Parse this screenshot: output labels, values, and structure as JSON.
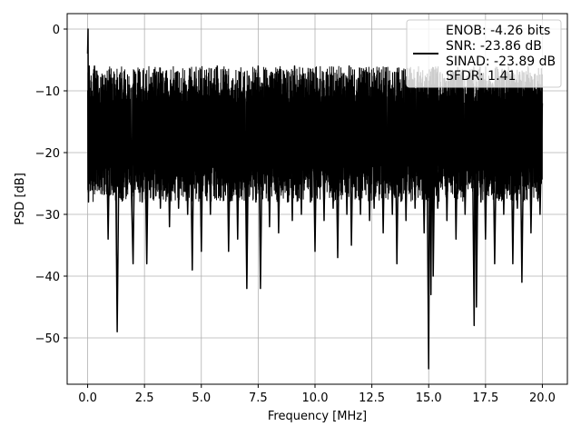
{
  "chart_data": {
    "type": "line",
    "title": "",
    "xlabel": "Frequency [MHz]",
    "ylabel": "PSD [dB]",
    "xlim": [
      -0.9,
      21.1
    ],
    "ylim": [
      -57.5,
      2.5
    ],
    "xticks": [
      0.0,
      2.5,
      5.0,
      7.5,
      10.0,
      12.5,
      15.0,
      17.5,
      20.0
    ],
    "xtick_labels": [
      "0.0",
      "2.5",
      "5.0",
      "7.5",
      "10.0",
      "12.5",
      "15.0",
      "17.5",
      "20.0"
    ],
    "yticks": [
      0,
      -10,
      -20,
      -30,
      -40,
      -50
    ],
    "ytick_labels": [
      "0",
      "−10",
      "−20",
      "−30",
      "−40",
      "−50"
    ],
    "grid": true,
    "legend": {
      "placement": "top-right",
      "entries": [
        "ENOB: -4.26 bits",
        "SNR: -23.86 dB",
        "SINAD: -23.89 dB",
        "SFDR: 1.41"
      ]
    },
    "series": [
      {
        "color": "#000000",
        "x_range": [
          0.0,
          20.0
        ],
        "points": [
          [
            0.0,
            -4
          ],
          [
            0.02,
            0
          ],
          [
            0.04,
            -28
          ],
          [
            0.07,
            -6
          ],
          [
            0.1,
            -25
          ],
          [
            0.15,
            -10
          ],
          [
            0.2,
            -26
          ],
          [
            0.3,
            -6
          ],
          [
            0.35,
            -22
          ],
          [
            0.45,
            -9
          ],
          [
            0.5,
            -26
          ],
          [
            0.6,
            -12
          ],
          [
            0.7,
            -24
          ],
          [
            0.8,
            -8
          ],
          [
            0.9,
            -34
          ],
          [
            1.0,
            -10
          ],
          [
            1.1,
            -26
          ],
          [
            1.2,
            -9
          ],
          [
            1.3,
            -49
          ],
          [
            1.4,
            -12
          ],
          [
            1.5,
            -22
          ],
          [
            1.6,
            -8
          ],
          [
            1.7,
            -27
          ],
          [
            1.8,
            -11
          ],
          [
            1.9,
            -22
          ],
          [
            2.0,
            -38
          ],
          [
            2.1,
            -10
          ],
          [
            2.2,
            -25
          ],
          [
            2.3,
            -7
          ],
          [
            2.4,
            -28
          ],
          [
            2.5,
            -12
          ],
          [
            2.6,
            -38
          ],
          [
            2.7,
            -9
          ],
          [
            2.8,
            -24
          ],
          [
            2.9,
            -10
          ],
          [
            3.0,
            -27
          ],
          [
            3.1,
            -7
          ],
          [
            3.2,
            -29
          ],
          [
            3.3,
            -11
          ],
          [
            3.4,
            -23
          ],
          [
            3.5,
            -8
          ],
          [
            3.6,
            -32
          ],
          [
            3.7,
            -10
          ],
          [
            3.8,
            -25
          ],
          [
            3.9,
            -7
          ],
          [
            4.0,
            -29
          ],
          [
            4.1,
            -12
          ],
          [
            4.2,
            -22
          ],
          [
            4.3,
            -9
          ],
          [
            4.4,
            -30
          ],
          [
            4.5,
            -11
          ],
          [
            4.6,
            -39
          ],
          [
            4.7,
            -7
          ],
          [
            4.8,
            -24
          ],
          [
            4.9,
            -10
          ],
          [
            5.0,
            -36
          ],
          [
            5.1,
            -8
          ],
          [
            5.2,
            -27
          ],
          [
            5.3,
            -11
          ],
          [
            5.4,
            -30
          ],
          [
            5.5,
            -9
          ],
          [
            5.6,
            -23
          ],
          [
            5.7,
            -6
          ],
          [
            5.8,
            -27
          ],
          [
            5.9,
            -10
          ],
          [
            6.0,
            -25
          ],
          [
            6.1,
            -8
          ],
          [
            6.2,
            -36
          ],
          [
            6.3,
            -12
          ],
          [
            6.4,
            -24
          ],
          [
            6.5,
            -9
          ],
          [
            6.6,
            -34
          ],
          [
            6.7,
            -7
          ],
          [
            6.8,
            -26
          ],
          [
            6.9,
            -11
          ],
          [
            7.0,
            -42
          ],
          [
            7.1,
            -8
          ],
          [
            7.2,
            -24
          ],
          [
            7.3,
            -10
          ],
          [
            7.4,
            -28
          ],
          [
            7.5,
            -6
          ],
          [
            7.6,
            -42
          ],
          [
            7.7,
            -12
          ],
          [
            7.8,
            -25
          ],
          [
            7.9,
            -8
          ],
          [
            8.0,
            -32
          ],
          [
            8.1,
            -10
          ],
          [
            8.2,
            -24
          ],
          [
            8.3,
            -7
          ],
          [
            8.4,
            -33
          ],
          [
            8.5,
            -11
          ],
          [
            8.6,
            -26
          ],
          [
            8.7,
            -8
          ],
          [
            8.8,
            -28
          ],
          [
            8.9,
            -10
          ],
          [
            9.0,
            -31
          ],
          [
            9.1,
            -6
          ],
          [
            9.2,
            -25
          ],
          [
            9.3,
            -9
          ],
          [
            9.4,
            -30
          ],
          [
            9.5,
            -11
          ],
          [
            9.6,
            -23
          ],
          [
            9.7,
            -7
          ],
          [
            9.8,
            -28
          ],
          [
            9.9,
            -10
          ],
          [
            10.0,
            -36
          ],
          [
            10.1,
            -8
          ],
          [
            10.2,
            -25
          ],
          [
            10.3,
            -11
          ],
          [
            10.4,
            -31
          ],
          [
            10.5,
            -7
          ],
          [
            10.6,
            -24
          ],
          [
            10.7,
            -9
          ],
          [
            10.8,
            -29
          ],
          [
            10.9,
            -12
          ],
          [
            11.0,
            -37
          ],
          [
            11.1,
            -8
          ],
          [
            11.2,
            -25
          ],
          [
            11.3,
            -10
          ],
          [
            11.4,
            -30
          ],
          [
            11.5,
            -6
          ],
          [
            11.6,
            -35
          ],
          [
            11.7,
            -11
          ],
          [
            11.8,
            -24
          ],
          [
            11.9,
            -8
          ],
          [
            12.0,
            -30
          ],
          [
            12.1,
            -10
          ],
          [
            12.2,
            -26
          ],
          [
            12.3,
            -7
          ],
          [
            12.4,
            -31
          ],
          [
            12.5,
            -11
          ],
          [
            12.6,
            -29
          ],
          [
            12.7,
            -8
          ],
          [
            12.8,
            -24
          ],
          [
            12.9,
            -10
          ],
          [
            13.0,
            -33
          ],
          [
            13.1,
            -9
          ],
          [
            13.2,
            -25
          ],
          [
            13.3,
            -11
          ],
          [
            13.4,
            -30
          ],
          [
            13.5,
            -7
          ],
          [
            13.6,
            -38
          ],
          [
            13.7,
            -10
          ],
          [
            13.8,
            -26
          ],
          [
            13.9,
            -8
          ],
          [
            14.0,
            -31
          ],
          [
            14.1,
            -11
          ],
          [
            14.2,
            -24
          ],
          [
            14.3,
            -9
          ],
          [
            14.4,
            -29
          ],
          [
            14.5,
            -7
          ],
          [
            14.6,
            -26
          ],
          [
            14.7,
            -10
          ],
          [
            14.8,
            -33
          ],
          [
            14.9,
            -8
          ],
          [
            15.0,
            -55
          ],
          [
            15.05,
            -12
          ],
          [
            15.1,
            -43
          ],
          [
            15.15,
            -10
          ],
          [
            15.2,
            -40
          ],
          [
            15.3,
            -9
          ],
          [
            15.4,
            -29
          ],
          [
            15.5,
            -11
          ],
          [
            15.6,
            -24
          ],
          [
            15.7,
            -8
          ],
          [
            15.8,
            -31
          ],
          [
            15.9,
            -10
          ],
          [
            16.0,
            -25
          ],
          [
            16.1,
            -7
          ],
          [
            16.2,
            -34
          ],
          [
            16.3,
            -11
          ],
          [
            16.4,
            -26
          ],
          [
            16.5,
            -9
          ],
          [
            16.6,
            -30
          ],
          [
            16.7,
            -12
          ],
          [
            16.8,
            -25
          ],
          [
            16.9,
            -8
          ],
          [
            17.0,
            -48
          ],
          [
            17.05,
            -11
          ],
          [
            17.1,
            -45
          ],
          [
            17.2,
            -10
          ],
          [
            17.3,
            -28
          ],
          [
            17.4,
            -8
          ],
          [
            17.5,
            -34
          ],
          [
            17.6,
            -11
          ],
          [
            17.7,
            -25
          ],
          [
            17.8,
            -9
          ],
          [
            17.9,
            -38
          ],
          [
            18.0,
            -12
          ],
          [
            18.1,
            -24
          ],
          [
            18.2,
            -8
          ],
          [
            18.3,
            -30
          ],
          [
            18.4,
            -10
          ],
          [
            18.5,
            -26
          ],
          [
            18.6,
            -9
          ],
          [
            18.7,
            -38
          ],
          [
            18.8,
            -11
          ],
          [
            18.9,
            -29
          ],
          [
            19.0,
            -7
          ],
          [
            19.1,
            -41
          ],
          [
            19.2,
            -10
          ],
          [
            19.3,
            -26
          ],
          [
            19.4,
            -8
          ],
          [
            19.5,
            -33
          ],
          [
            19.6,
            -11
          ],
          [
            19.7,
            -24
          ],
          [
            19.8,
            -9
          ],
          [
            19.9,
            -30
          ],
          [
            20.0,
            -12
          ]
        ]
      }
    ]
  }
}
